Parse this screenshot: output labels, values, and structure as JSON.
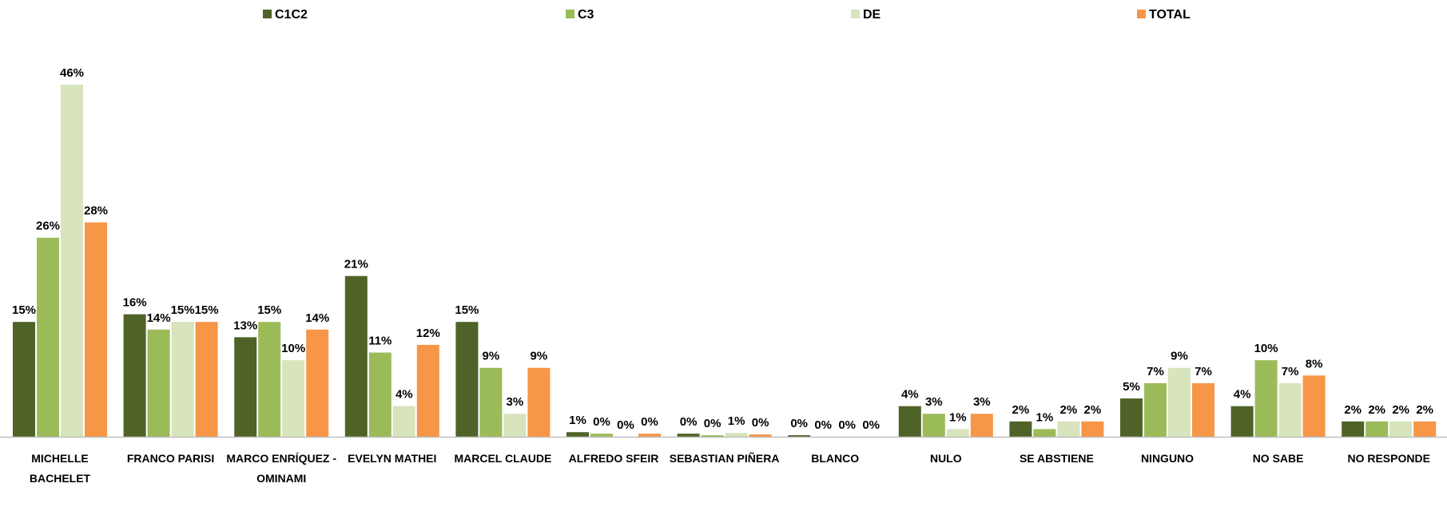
{
  "chart_data": {
    "type": "bar",
    "categories": [
      "MICHELLE BACHELET",
      "FRANCO PARISI",
      "MARCO ENRÍQUEZ - OMINAMI",
      "EVELYN MATHEI",
      "MARCEL CLAUDE",
      "ALFREDO SFEIR",
      "SEBASTIAN PIÑERA",
      "BLANCO",
      "NULO",
      "SE ABSTIENE",
      "NINGUNO",
      "NO SABE",
      "NO RESPONDE"
    ],
    "series": [
      {
        "name": "C1C2",
        "color": "#4f6228",
        "values": [
          15,
          16,
          13,
          21,
          15,
          0.6,
          0.4,
          0.2,
          4,
          2,
          5,
          4,
          2
        ],
        "value_labels": [
          "15%",
          "16%",
          "13%",
          "21%",
          "15%",
          "1%",
          "0%",
          "0%",
          "4%",
          "2%",
          "5%",
          "4%",
          "2%"
        ]
      },
      {
        "name": "C3",
        "color": "#9bbb59",
        "values": [
          26,
          14,
          15,
          11,
          9,
          0.4,
          0.2,
          0,
          3,
          1,
          7,
          10,
          2
        ],
        "value_labels": [
          "26%",
          "14%",
          "15%",
          "11%",
          "9%",
          "0%",
          "0%",
          "0%",
          "3%",
          "1%",
          "7%",
          "10%",
          "2%"
        ]
      },
      {
        "name": "DE",
        "color": "#d7e4bc",
        "values": [
          46,
          15,
          10,
          4,
          3,
          0,
          0.5,
          0,
          1,
          2,
          9,
          7,
          2
        ],
        "value_labels": [
          "46%",
          "15%",
          "10%",
          "4%",
          "3%",
          "0%",
          "1%",
          "0%",
          "1%",
          "2%",
          "9%",
          "7%",
          "2%"
        ]
      },
      {
        "name": "TOTAL",
        "color": "#f79646",
        "values": [
          28,
          15,
          14,
          12,
          9,
          0.4,
          0.3,
          0,
          3,
          2,
          7,
          8,
          2
        ],
        "value_labels": [
          "28%",
          "15%",
          "14%",
          "12%",
          "9%",
          "0%",
          "0%",
          "0%",
          "3%",
          "2%",
          "7%",
          "8%",
          "2%"
        ]
      }
    ]
  }
}
